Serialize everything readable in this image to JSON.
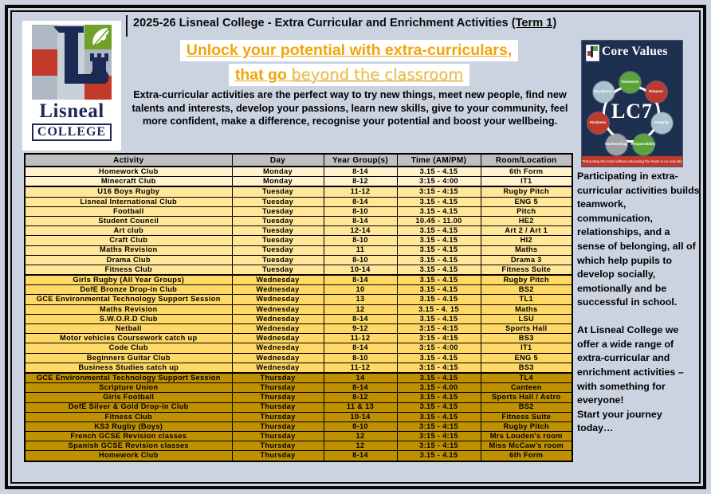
{
  "header": {
    "title_main": "2025-26 Lisneal College - Extra Curricular and Enrichment Activities ",
    "title_term": "(Term 1)",
    "headline_line1": "Unlock your potential with extra-curriculars,",
    "headline_line2_bold": "that go ",
    "headline_line2_light": "beyond the classroom",
    "intro": "Extra-curricular activities are the perfect way to try new things, meet new people, find new talents and interests, develop your passions, learn new skills, give to your community, feel more confident, make a difference, recognise your potential and boost your wellbeing."
  },
  "logo": {
    "name": "Lisneal",
    "college": "COLLEGE"
  },
  "core_values": {
    "title": "Core Values",
    "center_label": "LC7",
    "values": [
      "Teamwork",
      "Respect",
      "Integrity",
      "Responsibility",
      "Hardworking",
      "Kindness",
      "Excellence"
    ],
    "quote": "\"Educating the mind without educating the heart is no education at all.\" - Aristotle"
  },
  "table": {
    "columns": [
      "Activity",
      "Day",
      "Year Group(s)",
      "Time (AM/PM)",
      "Room/Location"
    ],
    "rows": [
      {
        "activity": "Homework Club",
        "day": "Monday",
        "year_groups": "8-14",
        "time": "3.15 - 4.15",
        "room": "6th Form"
      },
      {
        "activity": "Minecraft Club",
        "day": "Monday",
        "year_groups": "8-12",
        "time": "3:15 - 4:00",
        "room": "IT1"
      },
      {
        "activity": "U16 Boys Rugby",
        "day": "Tuesday",
        "year_groups": "11-12",
        "time": "3:15 - 4:15",
        "room": "Rugby Pitch"
      },
      {
        "activity": "Lisneal International Club",
        "day": "Tuesday",
        "year_groups": "8-14",
        "time": "3.15 - 4.15",
        "room": "ENG 5"
      },
      {
        "activity": "Football",
        "day": "Tuesday",
        "year_groups": "8-10",
        "time": "3.15 - 4.15",
        "room": "Pitch"
      },
      {
        "activity": "Student Council",
        "day": "Tuesday",
        "year_groups": "8-14",
        "time": "10.45 - 11.00",
        "room": "HE2"
      },
      {
        "activity": "Art club",
        "day": "Tuesday",
        "year_groups": "12-14",
        "time": "3.15 - 4.15",
        "room": "Art 2 / Art 1"
      },
      {
        "activity": "Craft Club",
        "day": "Tuesday",
        "year_groups": "8-10",
        "time": "3.15 - 4.15",
        "room": "HI2"
      },
      {
        "activity": "Maths Revision",
        "day": "Tuesday",
        "year_groups": "11",
        "time": "3.15 - 4.15",
        "room": "Maths"
      },
      {
        "activity": "Drama Club",
        "day": "Tuesday",
        "year_groups": "8-10",
        "time": "3.15 - 4.15",
        "room": "Drama 3"
      },
      {
        "activity": "Fitness Club",
        "day": "Tuesday",
        "year_groups": "10-14",
        "time": "3.15 - 4.15",
        "room": "Fitness Suite"
      },
      {
        "activity": "Girls Rugby (All Year Groups)",
        "day": "Wednesday",
        "year_groups": "8-14",
        "time": "3.15 - 4.15",
        "room": "Rugby Pitch"
      },
      {
        "activity": "DofE Bronze Drop-in Club",
        "day": "Wednesday",
        "year_groups": "10",
        "time": "3.15 - 4.15",
        "room": "BS2"
      },
      {
        "activity": "GCE Environmental Technology Support Session",
        "day": "Wednesday",
        "year_groups": "13",
        "time": "3.15 - 4.15",
        "room": "TL1"
      },
      {
        "activity": "Maths Revision",
        "day": "Wednesday",
        "year_groups": "12",
        "time": "3.15 - 4. 15",
        "room": "Maths"
      },
      {
        "activity": "S.W.O.R.D Club",
        "day": "Wednesday",
        "year_groups": "8-14",
        "time": "3.15 - 4.15",
        "room": "LSU"
      },
      {
        "activity": "Netball",
        "day": "Wednesday",
        "year_groups": "9-12",
        "time": "3:15 - 4:15",
        "room": "Sports Hall"
      },
      {
        "activity": "Motor vehicles Coursework catch up",
        "day": "Wednesday",
        "year_groups": "11-12",
        "time": "3:15 - 4:15",
        "room": "BS3"
      },
      {
        "activity": "Code Club",
        "day": "Wednesday",
        "year_groups": "8-14",
        "time": "3:15 - 4:00",
        "room": "IT1"
      },
      {
        "activity": "Beginners Guitar Club",
        "day": "Wednesday",
        "year_groups": "8-10",
        "time": "3.15 - 4.15",
        "room": "ENG 5"
      },
      {
        "activity": "Business Studies catch up",
        "day": "Wednesday",
        "year_groups": "11-12",
        "time": "3:15 - 4:15",
        "room": "BS3"
      },
      {
        "activity": "GCE Environmental Technology Support Session",
        "day": "Thursday",
        "year_groups": "14",
        "time": "3.15 - 4.15",
        "room": "TL4"
      },
      {
        "activity": "Scripture Union",
        "day": "Thursday",
        "year_groups": "8-14",
        "time": "3.15 - 4.00",
        "room": "Canteen"
      },
      {
        "activity": "Girls Football",
        "day": "Thursday",
        "year_groups": "8-12",
        "time": "3.15 - 4.15",
        "room": "Sports Hall / Astro"
      },
      {
        "activity": "DofE Silver & Gold Drop-in Club",
        "day": "Thursday",
        "year_groups": "11 & 13",
        "time": "3.15 - 4.15",
        "room": "BS2"
      },
      {
        "activity": "Fitness Club",
        "day": "Thursday",
        "year_groups": "10-14",
        "time": "3.15 - 4.15",
        "room": "Fitness Suite"
      },
      {
        "activity": "KS3 Rugby (Boys)",
        "day": "Thursday",
        "year_groups": "8-10",
        "time": "3:15 - 4:15",
        "room": "Rugby Pitch"
      },
      {
        "activity": "French GCSE Revision classes",
        "day": "Thursday",
        "year_groups": "12",
        "time": "3:15 - 4:15",
        "room": "Mrs Louden's room"
      },
      {
        "activity": "Spanish GCSE Revision classes",
        "day": "Thursday",
        "year_groups": "12",
        "time": "3:15 - 4:15",
        "room": "Miss McCaw's room"
      },
      {
        "activity": "Homework Club",
        "day": "Thursday",
        "year_groups": "8-14",
        "time": "3.15 - 4.15",
        "room": "6th Form"
      }
    ]
  },
  "sidebar": {
    "paragraph1": "Participating in extra-curricular activities builds teamwork, communication, relationships, and a sense of belonging, all of which help pupils to develop socially, emotionally and be successful in school.",
    "paragraph2": "At Lisneal College we offer a wide range of extra-curricular and enrichment activities – with something for everyone!",
    "paragraph3": "Start your journey today…"
  },
  "colors": {
    "accent_gold": "#f2a50c",
    "table_header_gray": "#bfbfbf",
    "day_rows": {
      "Monday": "#fff2cc",
      "Tuesday": "#ffe699",
      "Wednesday": "#ffd966",
      "Thursday": "#bf9000"
    },
    "core_values_bg": "#1e3050",
    "value_circle_colors": [
      "#5ba33c",
      "#be392e",
      "#a8c3cf",
      "#5ba33c",
      "#9ea2a6",
      "#be392e",
      "#a8c3cf"
    ],
    "quote_strip_red": "#c0392b"
  }
}
